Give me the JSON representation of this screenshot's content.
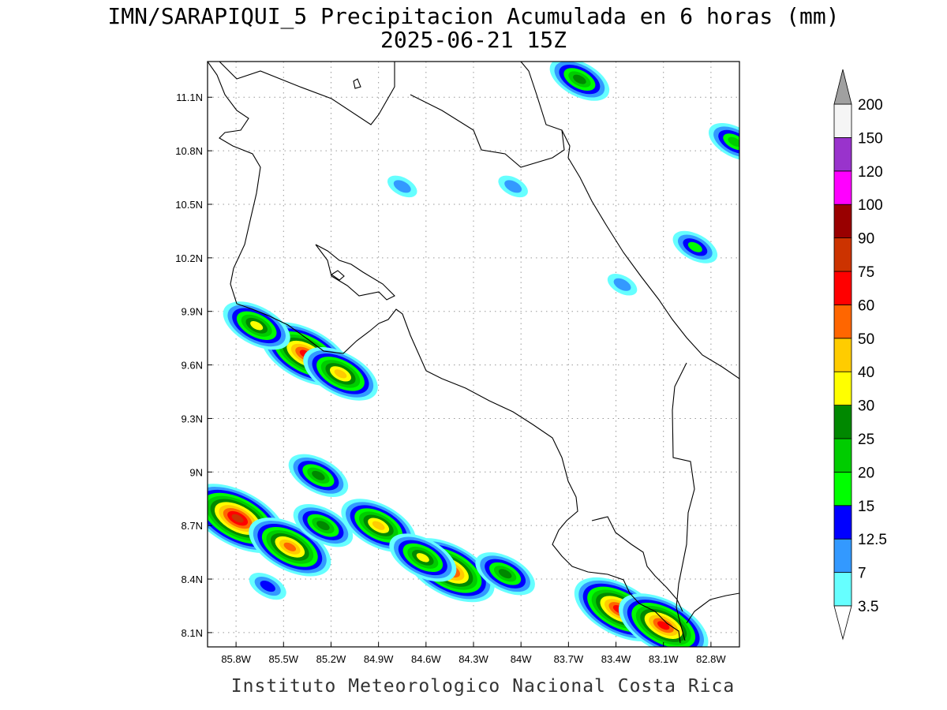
{
  "title": {
    "line1": "IMN/SARAPIQUI_5 Precipitacion Acumulada en 6 horas (mm)",
    "line2": "2025-06-21 15Z"
  },
  "footer": "Instituto Meteorologico Nacional Costa Rica",
  "axes": {
    "lon_ticks": [
      "85.8W",
      "85.5W",
      "85.2W",
      "84.9W",
      "84.6W",
      "84.3W",
      "84W",
      "83.7W",
      "83.4W",
      "83.1W",
      "82.8W"
    ],
    "lat_ticks": [
      "11.1N",
      "10.8N",
      "10.5N",
      "10.2N",
      "9.9N",
      "9.6N",
      "9.3N",
      "9N",
      "8.7N",
      "8.4N",
      "8.1N"
    ]
  },
  "legend": {
    "levels": [
      "3.5",
      "7",
      "12.5",
      "15",
      "20",
      "25",
      "30",
      "40",
      "50",
      "60",
      "75",
      "90",
      "100",
      "120",
      "150",
      "200"
    ],
    "colors": [
      "#66ffff",
      "#3399ff",
      "#0000ff",
      "#00ff00",
      "#00cc00",
      "#008800",
      "#ffff00",
      "#ffcc00",
      "#ff6600",
      "#ff0000",
      "#cc3300",
      "#990000",
      "#ff00ff",
      "#9933cc",
      "#f5f5f5",
      "#a0a0a0"
    ]
  },
  "chart_data": {
    "type": "heatmap",
    "variable": "Precipitacion Acumulada en 6 horas (mm)",
    "valid_time": "2025-06-21 15Z",
    "lon_range": [
      -85.98,
      -82.62
    ],
    "lat_range": [
      8.02,
      11.3
    ],
    "precip_cells": [
      {
        "lon": -85.79,
        "lat": 8.74,
        "max": 75
      },
      {
        "lon": -85.46,
        "lat": 8.58,
        "max": 50
      },
      {
        "lon": -85.25,
        "lat": 8.7,
        "max": 25
      },
      {
        "lon": -85.28,
        "lat": 8.98,
        "max": 25
      },
      {
        "lon": -84.9,
        "lat": 8.7,
        "max": 40
      },
      {
        "lon": -84.45,
        "lat": 8.45,
        "max": 60
      },
      {
        "lon": -84.62,
        "lat": 8.52,
        "max": 30
      },
      {
        "lon": -84.1,
        "lat": 8.43,
        "max": 25
      },
      {
        "lon": -85.6,
        "lat": 8.36,
        "max": 12.5
      },
      {
        "lon": -85.36,
        "lat": 9.66,
        "max": 60
      },
      {
        "lon": -85.14,
        "lat": 9.55,
        "max": 40
      },
      {
        "lon": -85.67,
        "lat": 9.82,
        "max": 30
      },
      {
        "lon": -83.38,
        "lat": 8.23,
        "max": 60
      },
      {
        "lon": -83.1,
        "lat": 8.14,
        "max": 60
      },
      {
        "lon": -83.63,
        "lat": 11.2,
        "max": 25
      },
      {
        "lon": -82.65,
        "lat": 10.85,
        "max": 20
      },
      {
        "lon": -84.05,
        "lat": 10.6,
        "max": 7
      },
      {
        "lon": -84.75,
        "lat": 10.6,
        "max": 7
      },
      {
        "lon": -83.36,
        "lat": 10.05,
        "max": 7
      },
      {
        "lon": -82.9,
        "lat": 10.26,
        "max": 15
      }
    ]
  }
}
